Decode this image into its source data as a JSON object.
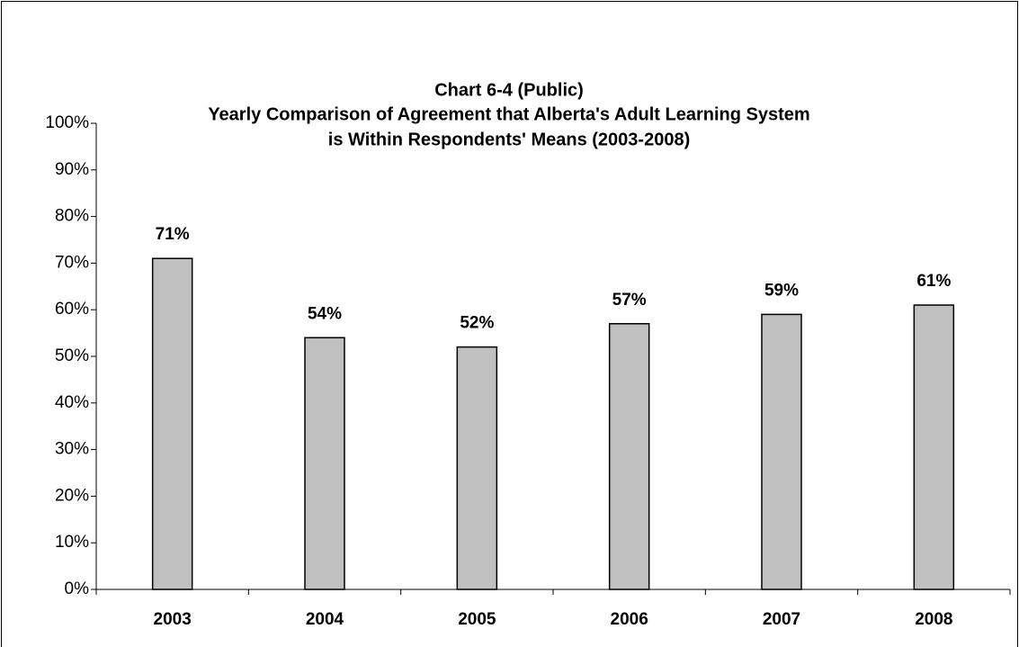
{
  "chart_data": {
    "type": "bar",
    "title": [
      "Chart 6-4 (Public)",
      "Yearly Comparison of Agreement that Alberta's Adult Learning System",
      "is Within Respondents' Means (2003-2008)"
    ],
    "categories": [
      "2003",
      "2004",
      "2005",
      "2006",
      "2007",
      "2008"
    ],
    "values": [
      71,
      54,
      52,
      57,
      59,
      61
    ],
    "value_labels": [
      "71%",
      "54%",
      "52%",
      "57%",
      "59%",
      "61%"
    ],
    "color": "#c0c0c0",
    "ylim": [
      0,
      100
    ],
    "yticks": [
      {
        "value": 0,
        "label": "0%"
      },
      {
        "value": 10,
        "label": "10%"
      },
      {
        "value": 20,
        "label": "20%"
      },
      {
        "value": 30,
        "label": "30%"
      },
      {
        "value": 40,
        "label": "40%"
      },
      {
        "value": 50,
        "label": "50%"
      },
      {
        "value": 60,
        "label": "60%"
      },
      {
        "value": 70,
        "label": "70%"
      },
      {
        "value": 80,
        "label": "80%"
      },
      {
        "value": 90,
        "label": "90%"
      },
      {
        "value": 100,
        "label": "100%"
      }
    ],
    "grid": false
  }
}
